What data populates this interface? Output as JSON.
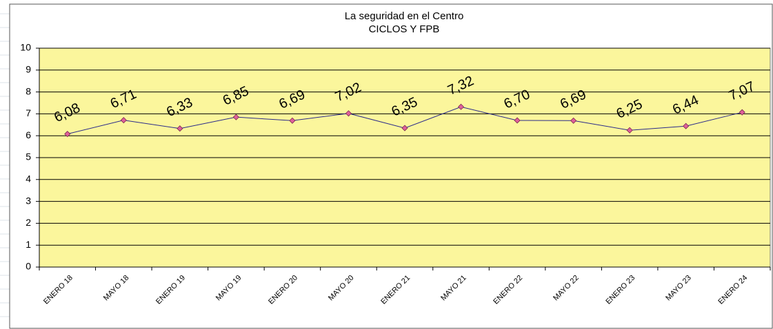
{
  "chart_data": {
    "type": "line",
    "title": "La seguridad en el Centro",
    "subtitle": "CICLOS Y FPB",
    "categories": [
      "ENERO 18",
      "MAYO 18",
      "ENERO 19",
      "MAYO 19",
      "ENERO 20",
      "MAYO 20",
      "ENERO 21",
      "MAYO 21",
      "ENERO 22",
      "MAYO 22",
      "ENERO 23",
      "MAYO 23",
      "ENERO 24"
    ],
    "series": [
      {
        "color": "#2a2a8a",
        "marker_color": "#e0609a",
        "values": [
          6.08,
          6.71,
          6.33,
          6.85,
          6.69,
          7.02,
          6.35,
          7.32,
          6.7,
          6.69,
          6.25,
          6.44,
          7.07
        ],
        "value_labels": [
          "6,08",
          "6,71",
          "6,33",
          "6,85",
          "6,69",
          "7,02",
          "6,35",
          "7,32",
          "6,70",
          "6,69",
          "6,25",
          "6,44",
          "7,07"
        ]
      }
    ],
    "ylim": [
      0,
      10
    ],
    "yticks": [
      0,
      1,
      2,
      3,
      4,
      5,
      6,
      7,
      8,
      9,
      10
    ],
    "grid": true,
    "plot_background": "#fbf69c"
  }
}
